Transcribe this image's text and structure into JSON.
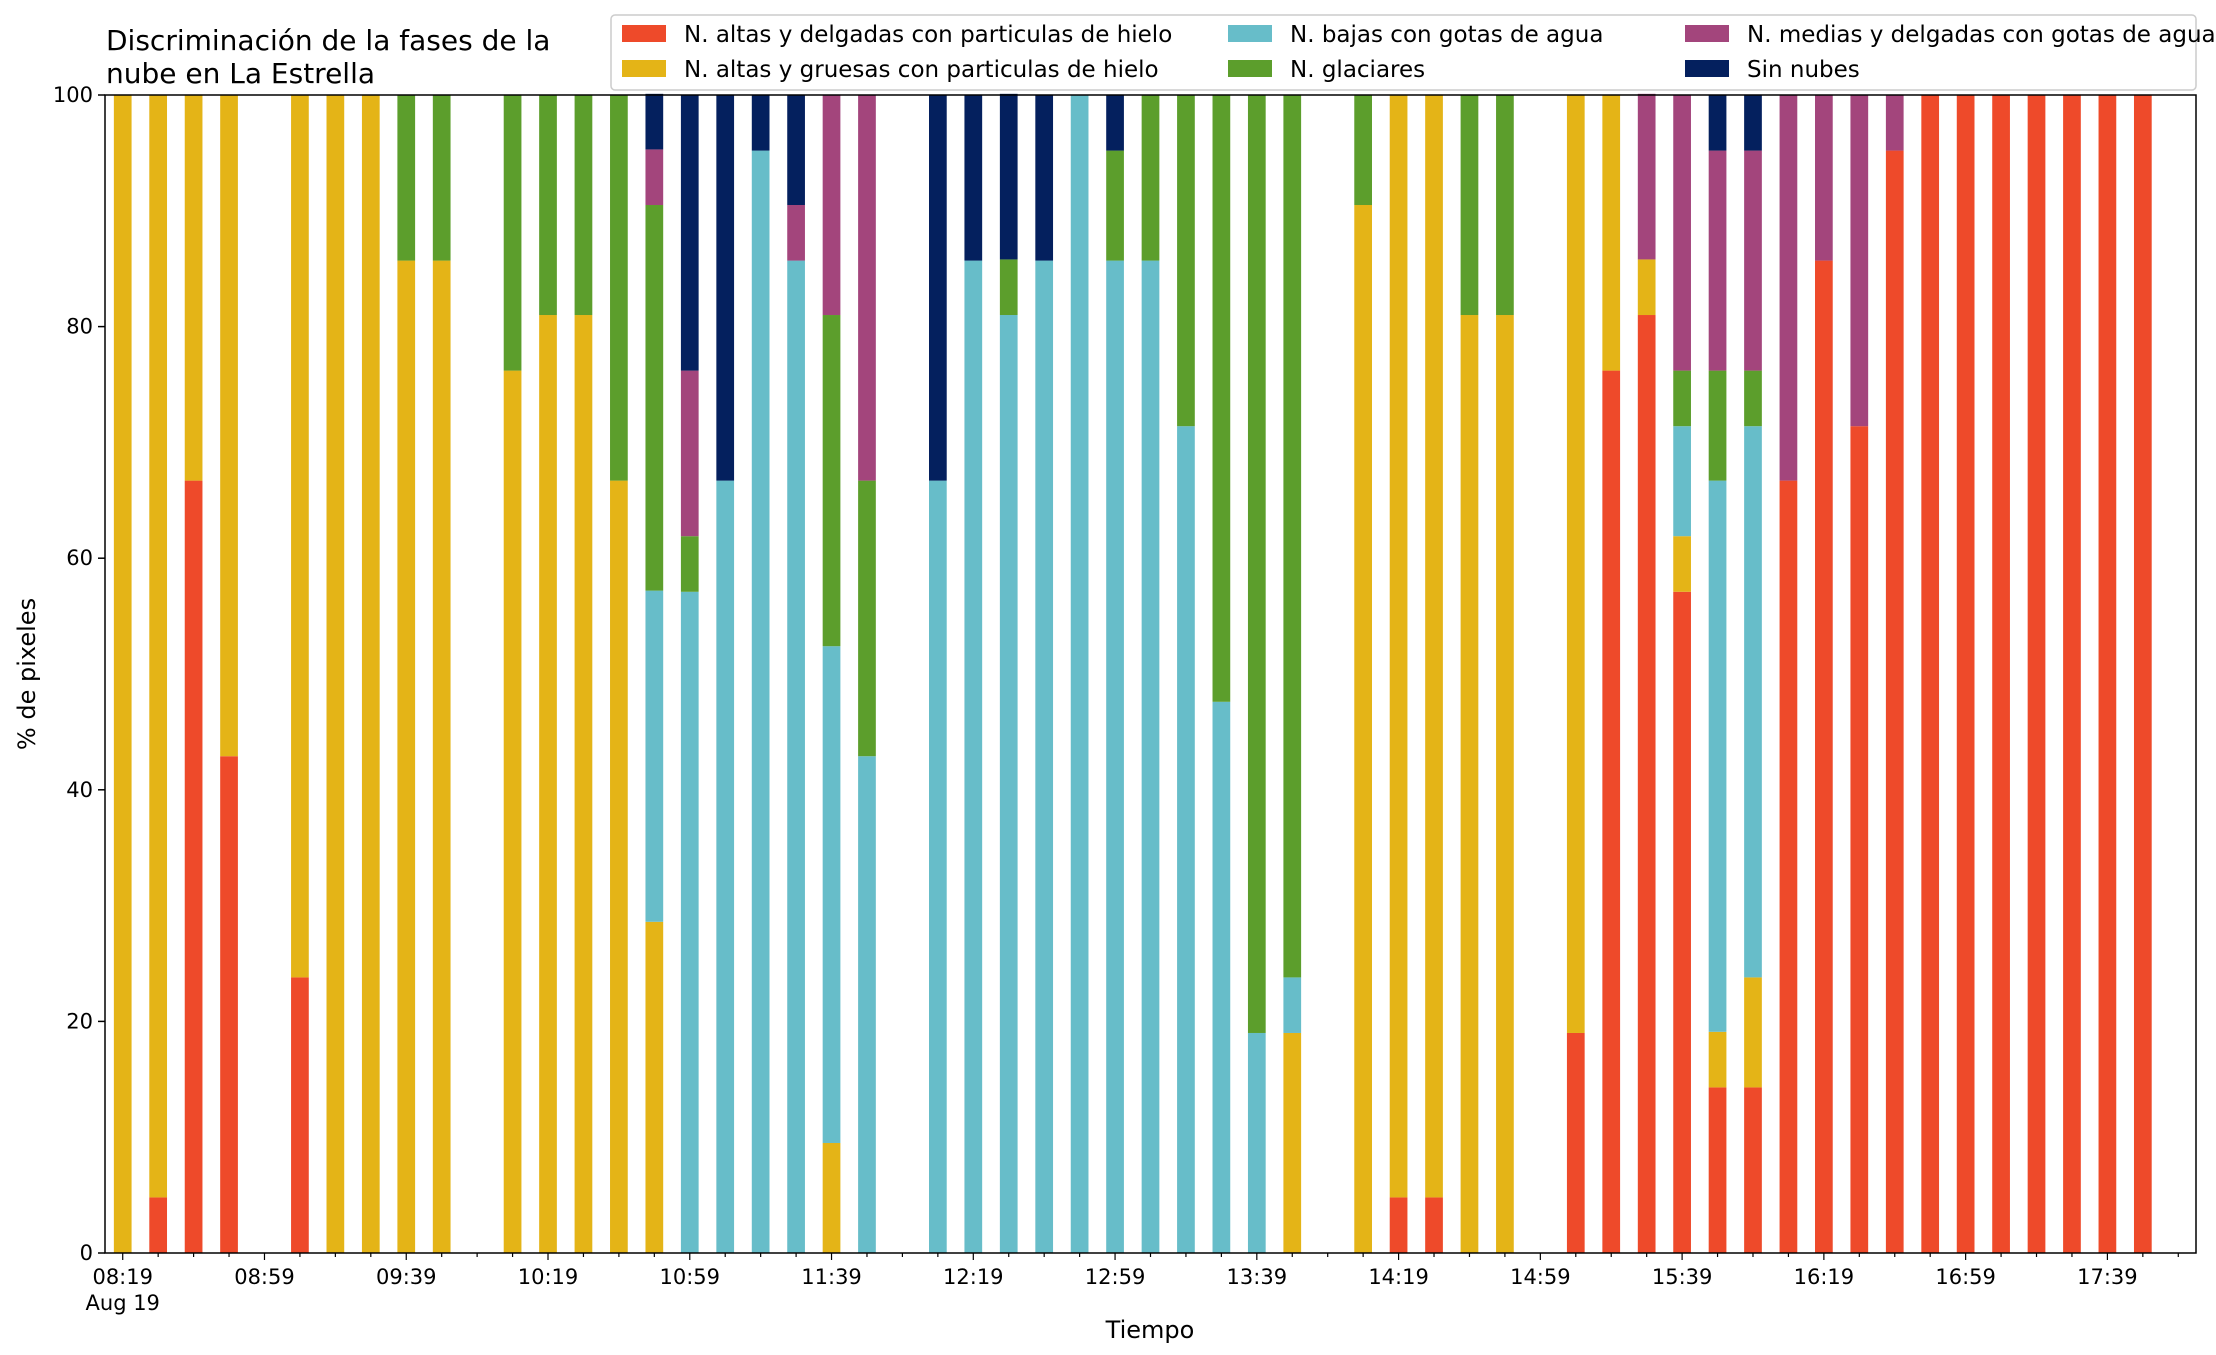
{
  "chart_data": {
    "type": "bar",
    "stacked": true,
    "title_lines": [
      "Discriminación de la fases de la",
      "nube en La Estrella"
    ],
    "xlabel": "Tiempo",
    "ylabel": "% de pixeles",
    "ylim": [
      0,
      100
    ],
    "yticks": [
      0,
      20,
      40,
      60,
      80,
      100
    ],
    "x_start": "08:19",
    "x_end": "17:59",
    "x_step_minutes": 10,
    "xtick_labels": [
      {
        "x": "08:19",
        "text": "08:19",
        "sub": "Aug 19"
      },
      {
        "x": "08:59",
        "text": "08:59"
      },
      {
        "x": "09:39",
        "text": "09:39"
      },
      {
        "x": "10:19",
        "text": "10:19"
      },
      {
        "x": "10:59",
        "text": "10:59"
      },
      {
        "x": "11:39",
        "text": "11:39"
      },
      {
        "x": "12:19",
        "text": "12:19"
      },
      {
        "x": "12:59",
        "text": "12:59"
      },
      {
        "x": "13:39",
        "text": "13:39"
      },
      {
        "x": "14:19",
        "text": "14:19"
      },
      {
        "x": "14:59",
        "text": "14:59"
      },
      {
        "x": "15:39",
        "text": "15:39"
      },
      {
        "x": "16:19",
        "text": "16:19"
      },
      {
        "x": "16:59",
        "text": "16:59"
      },
      {
        "x": "17:39",
        "text": "17:39"
      }
    ],
    "grid": false,
    "legend_location": "top-right",
    "series": [
      {
        "name": "N. altas y delgadas con particulas de hielo",
        "color": "#ee4a2a"
      },
      {
        "name": "N. altas y gruesas con particulas de hielo",
        "color": "#e4b417"
      },
      {
        "name": "N. bajas con gotas de agua",
        "color": "#67bdc9"
      },
      {
        "name": "N. glaciares",
        "color": "#5c9e2c"
      },
      {
        "name": "N. medias y delgadas con gotas de agua",
        "color": "#a3457c"
      },
      {
        "name": "Sin nubes",
        "color": "#04205e"
      }
    ],
    "bars": [
      {
        "x": "08:19",
        "values": [
          0,
          100,
          0,
          0,
          0,
          0
        ]
      },
      {
        "x": "08:29",
        "values": [
          4.8,
          95.2,
          0,
          0,
          0,
          0
        ]
      },
      {
        "x": "08:39",
        "values": [
          66.7,
          33.3,
          0,
          0,
          0,
          0
        ]
      },
      {
        "x": "08:49",
        "values": [
          42.9,
          57.1,
          0,
          0,
          0,
          0
        ]
      },
      {
        "x": "09:09",
        "values": [
          23.8,
          76.2,
          0,
          0,
          0,
          0
        ]
      },
      {
        "x": "09:19",
        "values": [
          0,
          100,
          0,
          0,
          0,
          0
        ]
      },
      {
        "x": "09:29",
        "values": [
          0,
          100,
          0,
          0,
          0,
          0
        ]
      },
      {
        "x": "09:39",
        "values": [
          0,
          85.7,
          0,
          14.3,
          0,
          0
        ]
      },
      {
        "x": "09:49",
        "values": [
          0,
          85.7,
          0,
          14.3,
          0,
          0
        ]
      },
      {
        "x": "10:09",
        "values": [
          0,
          76.2,
          0,
          23.8,
          0,
          0
        ]
      },
      {
        "x": "10:19",
        "values": [
          0,
          81.0,
          0,
          19.0,
          0,
          0
        ]
      },
      {
        "x": "10:29",
        "values": [
          0,
          81.0,
          0,
          19.0,
          0,
          0
        ]
      },
      {
        "x": "10:39",
        "values": [
          0,
          66.7,
          0,
          33.3,
          0,
          0
        ]
      },
      {
        "x": "10:49",
        "values": [
          0,
          28.6,
          28.6,
          33.3,
          4.8,
          4.8
        ]
      },
      {
        "x": "10:59",
        "values": [
          0,
          0,
          57.1,
          4.8,
          14.3,
          23.8
        ]
      },
      {
        "x": "11:09",
        "values": [
          0,
          0,
          66.7,
          0,
          0,
          33.3
        ]
      },
      {
        "x": "11:19",
        "values": [
          0,
          0,
          95.2,
          0,
          0,
          4.8
        ]
      },
      {
        "x": "11:29",
        "values": [
          0,
          0,
          85.7,
          0,
          4.8,
          9.5
        ]
      },
      {
        "x": "11:39",
        "values": [
          0,
          9.5,
          42.9,
          28.6,
          19.0,
          0
        ]
      },
      {
        "x": "11:49",
        "values": [
          0,
          0,
          42.9,
          23.8,
          33.3,
          0
        ]
      },
      {
        "x": "12:09",
        "values": [
          0,
          0,
          66.7,
          0,
          0,
          33.3
        ]
      },
      {
        "x": "12:19",
        "values": [
          0,
          0,
          85.7,
          0,
          0,
          14.3
        ]
      },
      {
        "x": "12:29",
        "values": [
          0,
          0,
          81.0,
          4.8,
          0,
          14.3
        ]
      },
      {
        "x": "12:39",
        "values": [
          0,
          0,
          85.7,
          0,
          0,
          14.3
        ]
      },
      {
        "x": "12:49",
        "values": [
          0,
          0,
          100,
          0,
          0,
          0
        ]
      },
      {
        "x": "12:59",
        "values": [
          0,
          0,
          85.7,
          9.5,
          0,
          4.8
        ]
      },
      {
        "x": "13:09",
        "values": [
          0,
          0,
          85.7,
          14.3,
          0,
          0
        ]
      },
      {
        "x": "13:19",
        "values": [
          0,
          0,
          71.4,
          28.6,
          0,
          0
        ]
      },
      {
        "x": "13:29",
        "values": [
          0,
          0,
          47.6,
          52.4,
          0,
          0
        ]
      },
      {
        "x": "13:39",
        "values": [
          0,
          0,
          19.0,
          81.0,
          0,
          0
        ]
      },
      {
        "x": "13:49",
        "values": [
          0,
          19.0,
          4.8,
          76.2,
          0,
          0
        ]
      },
      {
        "x": "14:09",
        "values": [
          0,
          90.5,
          0,
          9.5,
          0,
          0
        ]
      },
      {
        "x": "14:19",
        "values": [
          4.8,
          95.2,
          0,
          0,
          0,
          0
        ]
      },
      {
        "x": "14:29",
        "values": [
          4.8,
          95.2,
          0,
          0,
          0,
          0
        ]
      },
      {
        "x": "14:39",
        "values": [
          0,
          81.0,
          0,
          19.0,
          0,
          0
        ]
      },
      {
        "x": "14:49",
        "values": [
          0,
          81.0,
          0,
          19.0,
          0,
          0
        ]
      },
      {
        "x": "15:09",
        "values": [
          19.0,
          81.0,
          0,
          0,
          0,
          0
        ]
      },
      {
        "x": "15:19",
        "values": [
          76.2,
          23.8,
          0,
          0,
          0,
          0
        ]
      },
      {
        "x": "15:29",
        "values": [
          81.0,
          4.8,
          0,
          0,
          14.3,
          0
        ]
      },
      {
        "x": "15:39",
        "values": [
          57.1,
          4.8,
          9.5,
          4.8,
          23.8,
          0
        ]
      },
      {
        "x": "15:49",
        "values": [
          14.3,
          4.8,
          47.6,
          9.5,
          19.0,
          4.8
        ]
      },
      {
        "x": "15:59",
        "values": [
          14.3,
          9.5,
          47.6,
          4.8,
          19.0,
          4.8
        ]
      },
      {
        "x": "16:09",
        "values": [
          66.7,
          0,
          0,
          0,
          33.3,
          0
        ]
      },
      {
        "x": "16:19",
        "values": [
          85.7,
          0,
          0,
          0,
          14.3,
          0
        ]
      },
      {
        "x": "16:29",
        "values": [
          71.4,
          0,
          0,
          0,
          28.6,
          0
        ]
      },
      {
        "x": "16:39",
        "values": [
          95.2,
          0,
          0,
          0,
          4.8,
          0
        ]
      },
      {
        "x": "16:49",
        "values": [
          100,
          0,
          0,
          0,
          0,
          0
        ]
      },
      {
        "x": "16:59",
        "values": [
          100,
          0,
          0,
          0,
          0,
          0
        ]
      },
      {
        "x": "17:09",
        "values": [
          100,
          0,
          0,
          0,
          0,
          0
        ]
      },
      {
        "x": "17:19",
        "values": [
          100,
          0,
          0,
          0,
          0,
          0
        ]
      },
      {
        "x": "17:29",
        "values": [
          100,
          0,
          0,
          0,
          0,
          0
        ]
      },
      {
        "x": "17:39",
        "values": [
          100,
          0,
          0,
          0,
          0,
          0
        ]
      },
      {
        "x": "17:49",
        "values": [
          100,
          0,
          0,
          0,
          0,
          0
        ]
      }
    ]
  }
}
